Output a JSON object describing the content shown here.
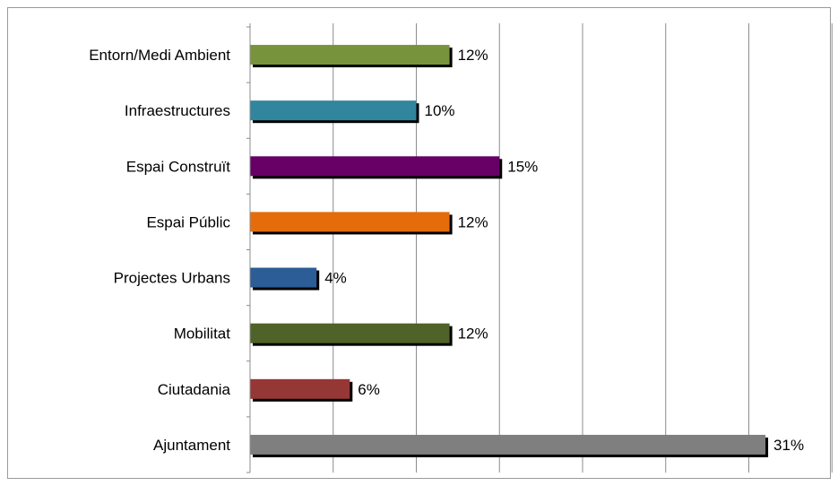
{
  "chart_data": {
    "type": "bar",
    "orientation": "horizontal",
    "categories": [
      "Entorn/Medi Ambient",
      "Infraestructures",
      "Espai Construït",
      "Espai Públic",
      "Projectes Urbans",
      "Mobilitat",
      "Ciutadania",
      "Ajuntament"
    ],
    "values": [
      12,
      10,
      15,
      12,
      4,
      12,
      6,
      31
    ],
    "value_labels": [
      "12%",
      "10%",
      "15%",
      "12%",
      "4%",
      "12%",
      "6%",
      "31%"
    ],
    "bar_colors": [
      "#77933c",
      "#31859c",
      "#660066",
      "#e46c0a",
      "#2c5d96",
      "#4f6228",
      "#953735",
      "#7f7f7f"
    ],
    "xlim": [
      0,
      35
    ],
    "grid": true,
    "legend": "none"
  }
}
